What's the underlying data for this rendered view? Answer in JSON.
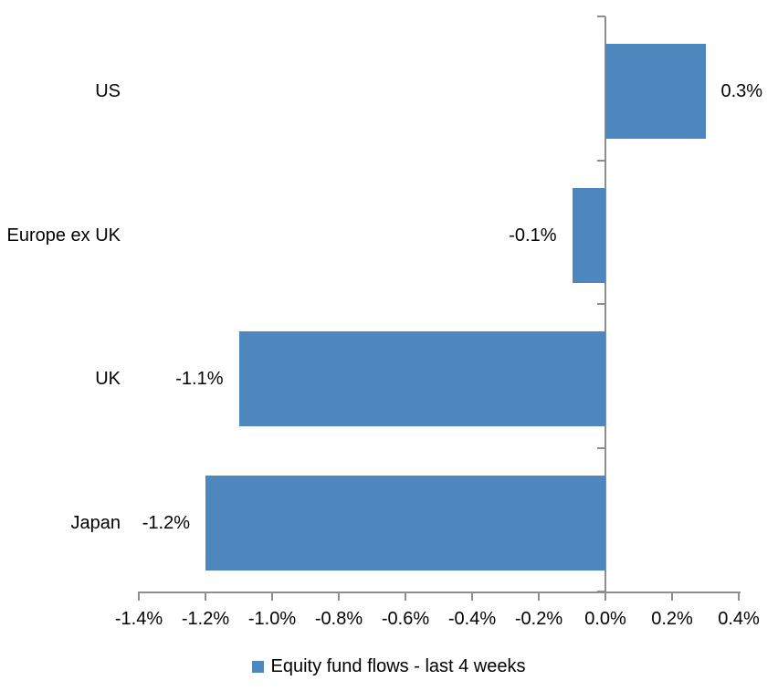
{
  "chart_data": {
    "type": "bar",
    "orientation": "horizontal",
    "title": "",
    "xlabel": "",
    "ylabel": "",
    "categories": [
      "US",
      "Europe ex UK",
      "UK",
      "Japan"
    ],
    "series": [
      {
        "name": "Equity fund flows - last 4 weeks",
        "values": [
          0.3,
          -0.1,
          -1.1,
          -1.2
        ],
        "data_labels": [
          "0.3%",
          "-0.1%",
          "-1.1%",
          "-1.2%"
        ]
      }
    ],
    "xlim": [
      -1.4,
      0.4
    ],
    "x_tick_values": [
      -1.4,
      -1.2,
      -1.0,
      -0.8,
      -0.6,
      -0.4,
      -0.2,
      0.0,
      0.2,
      0.4
    ],
    "x_tick_labels": [
      "-1.4%",
      "-1.2%",
      "-1.0%",
      "-0.8%",
      "-0.6%",
      "-0.4%",
      "-0.2%",
      "0.0%",
      "0.2%",
      "0.4%"
    ],
    "grid": false,
    "legend_position": "bottom",
    "data_label_position": "outside-end"
  },
  "legend": {
    "label": "Equity fund flows - last 4 weeks"
  },
  "colors": {
    "bar_fill": "#4e86be",
    "axis_line": "#8e8e8e",
    "text": "#000000",
    "background": "#ffffff"
  }
}
